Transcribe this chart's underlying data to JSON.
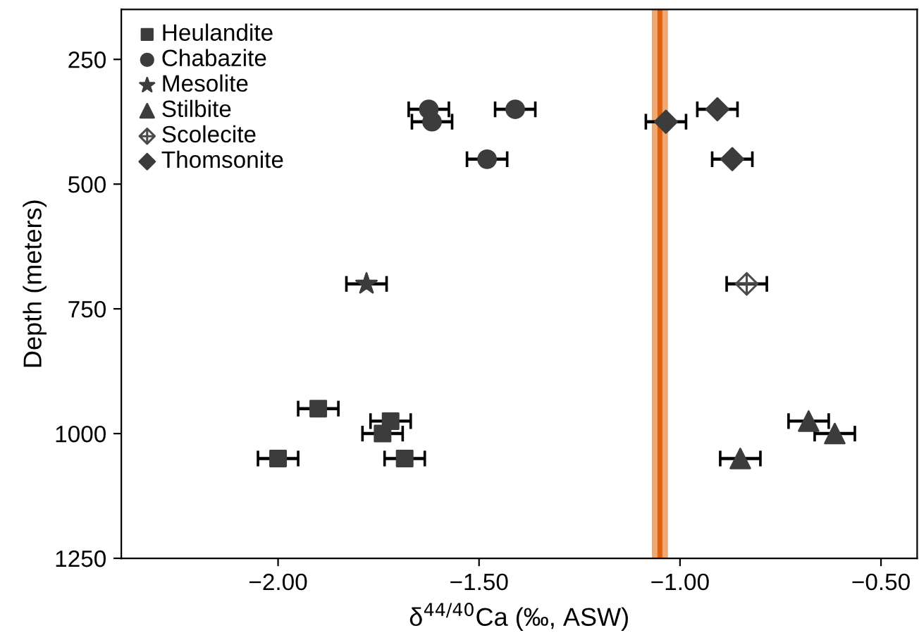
{
  "chart_data": {
    "type": "scatter",
    "xlabel": "δ$^{44/40}$Ca (‰, ASW)",
    "ylabel": "Depth (meters)",
    "xlim": [
      -2.39,
      -0.41
    ],
    "ylim": [
      1250,
      150
    ],
    "xticks": [
      {
        "value": -2.0,
        "label": "−2.00"
      },
      {
        "value": -1.5,
        "label": "−1.50"
      },
      {
        "value": -1.0,
        "label": "−1.00"
      },
      {
        "value": -0.5,
        "label": "−0.50"
      }
    ],
    "yticks": [
      250,
      500,
      750,
      1000,
      1250
    ],
    "grid": false,
    "legend": "top left",
    "series": [
      {
        "name": "Heulandite",
        "color": "#3c3c3c",
        "marker": "square",
        "x": [
          -1.9,
          -1.72,
          -1.74,
          -2.0,
          -1.685
        ],
        "values": [
          950,
          975,
          1000,
          1050,
          1050
        ],
        "xerrors": [
          0.05,
          0.05,
          0.05,
          0.05,
          0.05
        ]
      },
      {
        "name": "Chabazite",
        "color": "#3c3c3c",
        "marker": "circle",
        "x": [
          -1.625,
          -1.617,
          -1.41,
          -1.48
        ],
        "values": [
          350,
          375,
          350,
          450
        ],
        "xerrors": [
          0.05,
          0.05,
          0.05,
          0.05
        ]
      },
      {
        "name": "Mesolite",
        "color": "#3c3c3c",
        "marker": "star",
        "x": [
          -1.78
        ],
        "values": [
          700
        ],
        "xerrors": [
          0.05
        ]
      },
      {
        "name": "Stilbite",
        "color": "#3c3c3c",
        "marker": "triangle",
        "x": [
          -0.68,
          -0.615,
          -0.85
        ],
        "values": [
          975,
          1000,
          1050
        ],
        "xerrors": [
          0.05,
          0.05,
          0.05
        ]
      },
      {
        "name": "Scolecite",
        "color": "#4a4a4a",
        "marker": "cross",
        "x": [
          -0.834
        ],
        "values": [
          700
        ],
        "xerrors": [
          0.05
        ]
      },
      {
        "name": "Thomsonite",
        "color": "#3c3c3c",
        "marker": "diamond",
        "x": [
          -0.907,
          -1.035,
          -0.87
        ],
        "values": [
          350,
          375,
          450
        ],
        "xerrors": [
          0.05,
          0.05,
          0.05
        ]
      }
    ],
    "ref_lines": [
      {
        "axis": "x",
        "value": -1.05,
        "color": "#e06010"
      }
    ],
    "bands": [
      {
        "axis": "x",
        "from": -1.07,
        "to": -1.03,
        "color": "#f0a870"
      }
    ]
  }
}
